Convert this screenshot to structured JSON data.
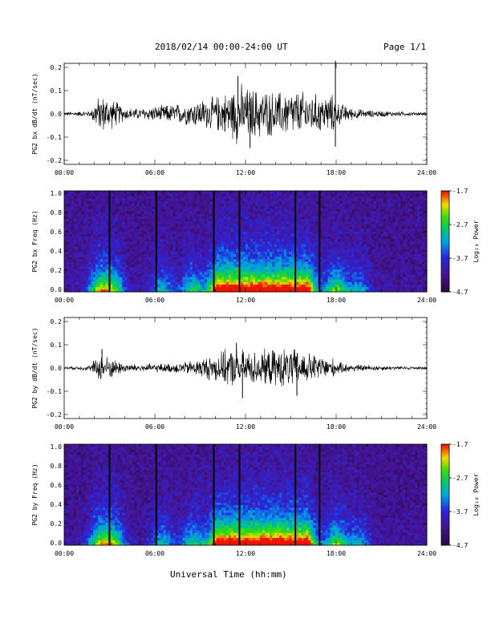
{
  "header": {
    "title": "2018/02/14  00:00-24:00 UT",
    "page": "Page 1/1"
  },
  "footer": {
    "xlabel": "Universal Time (hh:mm)"
  },
  "colorbar": {
    "label": "Log₁₀ Power",
    "ticks": [
      "-1.7",
      "-2.7",
      "-3.7",
      "-4.7"
    ]
  },
  "colors": {
    "trace": "#000000",
    "background_spec": "#2a0a4a"
  },
  "chart_data": [
    {
      "type": "line",
      "ylabel": "PG2 bx dB/dt (nT/sec)",
      "yticks": [
        "0.2",
        "0.1",
        "0.0",
        "-0.1",
        "-0.2"
      ],
      "ylim": [
        -0.2,
        0.2
      ],
      "xlim": [
        "00:00",
        "24:00"
      ],
      "xticks": [
        "00:00",
        "06:00",
        "12:00",
        "18:00",
        "24:00"
      ],
      "envelope_hours": [
        0,
        1,
        1.8,
        2,
        2.5,
        3,
        3.5,
        4,
        5,
        6,
        7,
        8,
        9,
        10,
        11,
        11.5,
        12,
        13,
        14,
        15,
        16,
        17,
        17.9,
        18,
        19,
        20,
        21,
        22,
        23,
        24
      ],
      "envelope_amp": [
        0.006,
        0.008,
        0.01,
        0.045,
        0.06,
        0.05,
        0.04,
        0.02,
        0.018,
        0.025,
        0.03,
        0.035,
        0.045,
        0.055,
        0.075,
        0.1,
        0.085,
        0.08,
        0.07,
        0.075,
        0.07,
        0.06,
        0.06,
        0.04,
        0.02,
        0.012,
        0.01,
        0.008,
        0.006,
        0.006
      ],
      "spikes": [
        {
          "x": 11.5,
          "y": 0.15
        },
        {
          "x": 12.3,
          "y": -0.135
        },
        {
          "x": 17.95,
          "y": 0.21
        },
        {
          "x": 17.95,
          "y": -0.13
        }
      ]
    },
    {
      "type": "heatmap",
      "ylabel": "PG2 bx Freq (Hz)",
      "yticks": [
        "1.0",
        "0.8",
        "0.6",
        "0.4",
        "0.2",
        "0.0"
      ],
      "ylim": [
        0,
        1
      ],
      "xlim": [
        "00:00",
        "24:00"
      ],
      "xticks": [
        "00:00",
        "06:00",
        "12:00",
        "18:00",
        "24:00"
      ],
      "zlim": [
        -4.7,
        -1.7
      ],
      "gaps_hours": [
        3.0,
        6.1,
        9.9,
        11.6,
        15.3,
        16.9
      ]
    },
    {
      "type": "line",
      "ylabel": "PG2 by dB/dt (nT/sec)",
      "yticks": [
        "0.2",
        "0.1",
        "0.0",
        "-0.1",
        "-0.2"
      ],
      "ylim": [
        -0.2,
        0.2
      ],
      "xlim": [
        "00:00",
        "24:00"
      ],
      "xticks": [
        "00:00",
        "06:00",
        "12:00",
        "18:00",
        "24:00"
      ],
      "envelope_hours": [
        0,
        1,
        1.8,
        2,
        2.5,
        3,
        3.5,
        4,
        5,
        6,
        7,
        8,
        9,
        10,
        11,
        11.5,
        12,
        13,
        14,
        15,
        16,
        17,
        17.9,
        18,
        19,
        20,
        21,
        22,
        23,
        24
      ],
      "envelope_amp": [
        0.005,
        0.006,
        0.01,
        0.03,
        0.045,
        0.035,
        0.025,
        0.015,
        0.012,
        0.014,
        0.015,
        0.02,
        0.03,
        0.045,
        0.06,
        0.065,
        0.055,
        0.055,
        0.06,
        0.065,
        0.05,
        0.04,
        0.03,
        0.02,
        0.012,
        0.01,
        0.008,
        0.006,
        0.005,
        0.005
      ],
      "spikes": [
        {
          "x": 2.5,
          "y": 0.075
        },
        {
          "x": 11.4,
          "y": 0.1
        },
        {
          "x": 11.8,
          "y": -0.12
        },
        {
          "x": 15.4,
          "y": -0.11
        }
      ]
    },
    {
      "type": "heatmap",
      "ylabel": "PG2 by Freq (Hz)",
      "yticks": [
        "1.0",
        "0.8",
        "0.6",
        "0.4",
        "0.2",
        "0.0"
      ],
      "ylim": [
        0,
        1
      ],
      "xlim": [
        "00:00",
        "24:00"
      ],
      "xticks": [
        "00:00",
        "06:00",
        "12:00",
        "18:00",
        "24:00"
      ],
      "zlim": [
        -4.7,
        -1.7
      ],
      "gaps_hours": [
        3.0,
        6.1,
        9.9,
        11.6,
        15.3,
        16.9
      ]
    }
  ]
}
